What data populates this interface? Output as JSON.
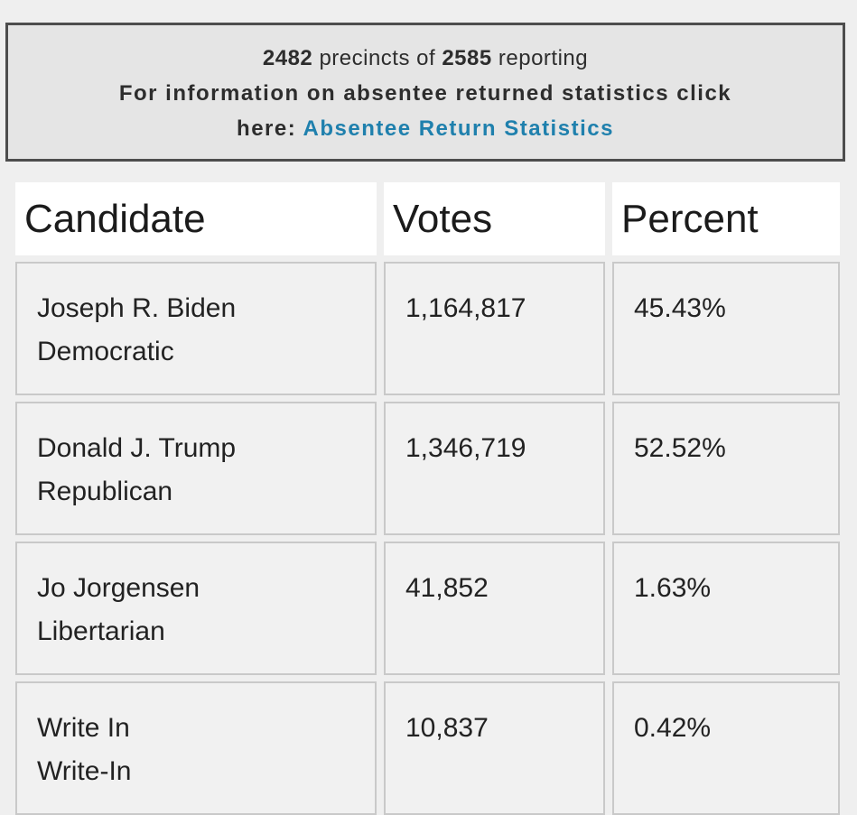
{
  "page": {
    "background_color": "#efefef"
  },
  "notice": {
    "reporting": {
      "count": "2482",
      "middle": "precincts of",
      "total": "2585",
      "suffix": "reporting"
    },
    "info_line1": "For information on absentee returned statistics click",
    "info_line2_prefix": "here:",
    "link_label": "Absentee Return Statistics",
    "colors": {
      "link": "#1f80ad",
      "box_border": "#4d4d4d",
      "box_background": "#e5e5e5"
    }
  },
  "results_table": {
    "columns": [
      "Candidate",
      "Votes",
      "Percent"
    ],
    "rows": [
      {
        "candidate": "Joseph R. Biden",
        "party": "Democratic",
        "votes": "1,164,817",
        "percent": "45.43%"
      },
      {
        "candidate": "Donald J. Trump",
        "party": "Republican",
        "votes": "1,346,719",
        "percent": "52.52%"
      },
      {
        "candidate": "Jo Jorgensen",
        "party": "Libertarian",
        "votes": "41,852",
        "percent": "1.63%"
      },
      {
        "candidate": "Write In",
        "party": "Write-In",
        "votes": "10,837",
        "percent": "0.42%"
      }
    ]
  }
}
